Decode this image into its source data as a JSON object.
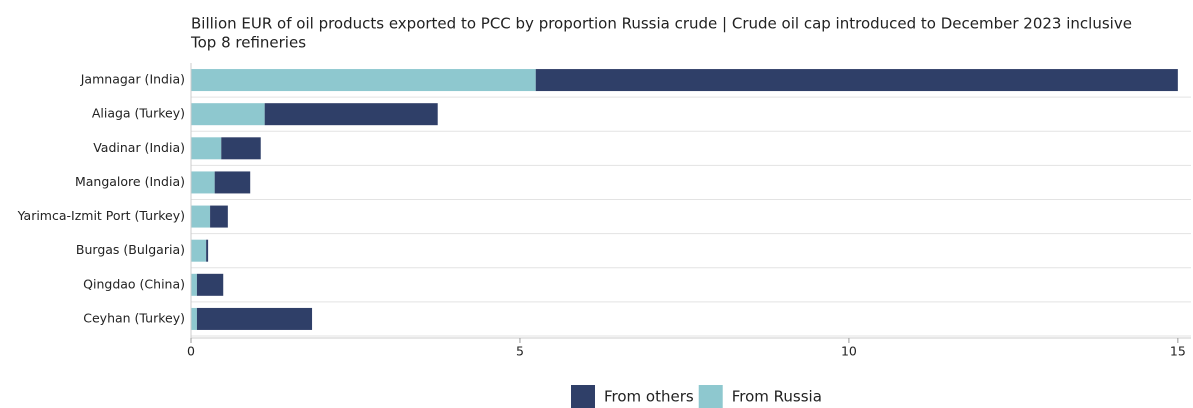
{
  "chart_data": {
    "type": "stacked_barh",
    "title": "Billion EUR of oil products exported to PCC by proportion Russia crude | Crude oil cap introduced to December 2023 inclusive",
    "subtitle": "Top 8 refineries",
    "categories": [
      "Jamnagar (India)",
      "Aliaga (Turkey)",
      "Vadinar (India)",
      "Mangalore (India)",
      "Yarimca-Izmit Port (Turkey)",
      "Burgas (Bulgaria)",
      "Qingdao (China)",
      "Ceyhan (Turkey)"
    ],
    "series": [
      {
        "name": "From others",
        "color": "#2f3f68",
        "values": [
          9.76,
          2.63,
          0.6,
          0.54,
          0.27,
          0.03,
          0.4,
          1.75
        ]
      },
      {
        "name": "From Russia",
        "color": "#8ec8cf",
        "values": [
          5.24,
          1.12,
          0.46,
          0.36,
          0.29,
          0.23,
          0.09,
          0.09
        ]
      }
    ],
    "xlim": [
      0,
      15.2
    ],
    "xticks": [
      0,
      5,
      10,
      15
    ],
    "grid": true
  }
}
